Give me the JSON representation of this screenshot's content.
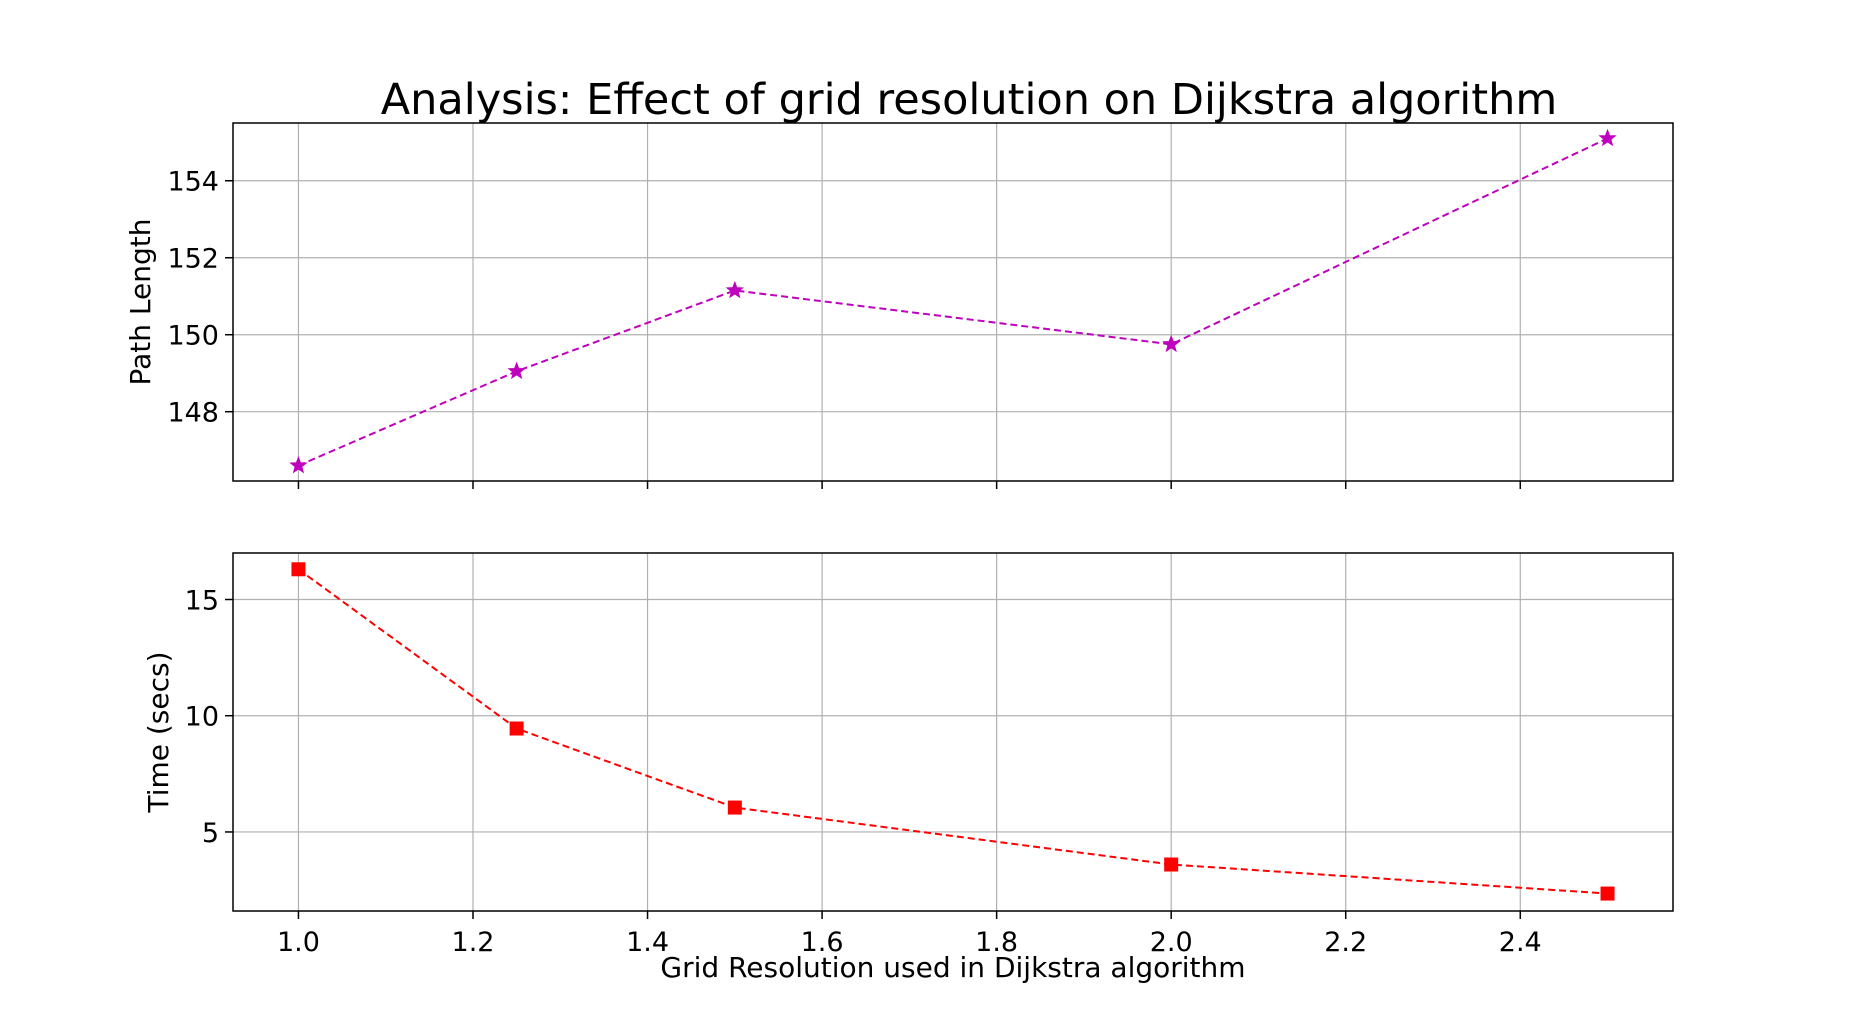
{
  "chart_data": [
    {
      "type": "line",
      "title": "Analysis: Effect of grid resolution on Dijkstra algorithm",
      "xlabel": "",
      "ylabel": "Path Length",
      "xlim": [
        0.925,
        2.575
      ],
      "ylim": [
        146.2,
        155.5
      ],
      "grid": true,
      "x_ticks": [
        1.0,
        1.2,
        1.4,
        1.6,
        1.8,
        2.0,
        2.2,
        2.4
      ],
      "x_tick_labels_visible": false,
      "y_ticks": [
        148,
        150,
        152,
        154
      ],
      "series": [
        {
          "color": "#bf00bf",
          "line_style": "dashed",
          "marker": "star",
          "x": [
            1.0,
            1.25,
            1.5,
            2.0,
            2.5
          ],
          "y": [
            146.6,
            149.05,
            151.15,
            149.75,
            155.1
          ]
        }
      ]
    },
    {
      "type": "line",
      "title": "",
      "xlabel": "Grid Resolution used in Dijkstra algorithm",
      "ylabel": "Time  (secs)",
      "xlim": [
        0.925,
        2.575
      ],
      "ylim": [
        1.6,
        17.0
      ],
      "grid": true,
      "x_ticks": [
        1.0,
        1.2,
        1.4,
        1.6,
        1.8,
        2.0,
        2.2,
        2.4
      ],
      "x_tick_labels_visible": true,
      "y_ticks": [
        5,
        10,
        15
      ],
      "series": [
        {
          "color": "#ff0000",
          "line_style": "dashed",
          "marker": "square",
          "x": [
            1.0,
            1.25,
            1.5,
            2.0,
            2.5
          ],
          "y": [
            16.3,
            9.45,
            6.05,
            3.6,
            2.35
          ]
        }
      ]
    }
  ]
}
